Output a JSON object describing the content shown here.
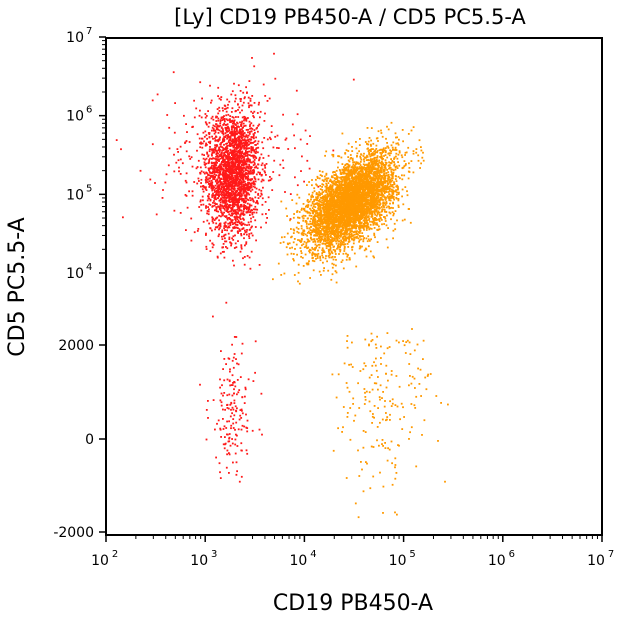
{
  "chart_data": {
    "type": "scatter",
    "title": "[Ly] CD19 PB450-A / CD5 PC5.5-A",
    "xlabel": "CD19 PB450-A",
    "ylabel": "CD5 PC5.5-A",
    "x_scale": "log",
    "xlim": [
      100,
      10000000
    ],
    "x_ticks": [
      {
        "base": "10",
        "exp": "2",
        "value": 100
      },
      {
        "base": "10",
        "exp": "3",
        "value": 1000
      },
      {
        "base": "10",
        "exp": "4",
        "value": 10000
      },
      {
        "base": "10",
        "exp": "5",
        "value": 100000
      },
      {
        "base": "10",
        "exp": "6",
        "value": 1000000
      },
      {
        "base": "10",
        "exp": "7",
        "value": 10000000
      }
    ],
    "y_scale": "biexponential",
    "ylim": [
      -2000,
      10000000
    ],
    "y_ticks": [
      {
        "label": "-2000",
        "value": -2000
      },
      {
        "label": "0",
        "value": 0
      },
      {
        "label": "2000",
        "value": 2000
      },
      {
        "base": "10",
        "exp": "4",
        "value": 10000
      },
      {
        "base": "10",
        "exp": "5",
        "value": 100000
      },
      {
        "base": "10",
        "exp": "6",
        "value": 1000000
      },
      {
        "base": "10",
        "exp": "7",
        "value": 10000000
      }
    ],
    "grid": false,
    "legend": "none",
    "series": [
      {
        "color": "#ff1a1a",
        "clusters": [
          {
            "x_center": 1900,
            "y_center": 180000,
            "x_spread_decades": 0.13,
            "y_spread_decades": 0.4,
            "count": 2200
          },
          {
            "x_center": 1700,
            "y_center": 300000,
            "x_spread_decades": 0.35,
            "y_spread_decades": 0.45,
            "count": 400
          },
          {
            "x_center": 1900,
            "y_center": 600,
            "x_spread_decades": 0.12,
            "y_spread": 700,
            "count": 170
          }
        ]
      },
      {
        "color": "#ff9900",
        "clusters": [
          {
            "x_center": 30000,
            "y_center": 80000,
            "x_spread_decades": 0.22,
            "y_spread_decades": 0.3,
            "count": 5000,
            "correlation": "positive"
          },
          {
            "x_center": 60000,
            "y_center": 800,
            "x_spread_decades": 0.25,
            "y_spread": 1000,
            "count": 200
          }
        ]
      }
    ]
  }
}
